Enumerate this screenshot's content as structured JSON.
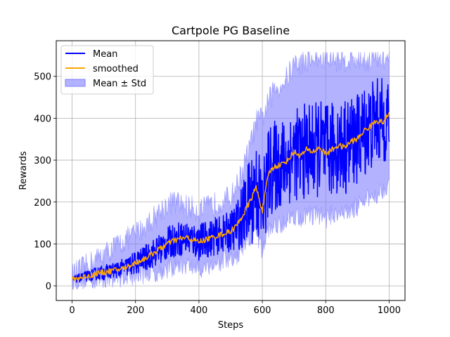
{
  "chart_data": {
    "type": "line",
    "title": "Cartpole PG Baseline",
    "xlabel": "Steps",
    "ylabel": "Rewards",
    "xlim": [
      -50,
      1050
    ],
    "ylim": [
      -35,
      585
    ],
    "xticks": [
      0,
      200,
      400,
      600,
      800,
      1000
    ],
    "yticks": [
      0,
      100,
      200,
      300,
      400,
      500
    ],
    "grid": true,
    "legend_position": "top-left",
    "legend": [
      "Mean",
      "smoothed",
      "Mean ± Std"
    ],
    "colors": {
      "mean": "#0000ff",
      "smoothed": "#ffa500",
      "std_band": "#7f7fff"
    },
    "steps_step": 20,
    "series": [
      {
        "name": "smoothed",
        "x": [
          0,
          20,
          40,
          60,
          80,
          100,
          120,
          140,
          160,
          180,
          200,
          220,
          240,
          260,
          280,
          300,
          320,
          340,
          360,
          380,
          400,
          420,
          440,
          460,
          480,
          500,
          520,
          540,
          560,
          580,
          600,
          620,
          640,
          660,
          680,
          700,
          720,
          740,
          760,
          780,
          800,
          820,
          840,
          860,
          880,
          900,
          920,
          940,
          960,
          980,
          1000
        ],
        "values": [
          15,
          18,
          22,
          25,
          30,
          32,
          35,
          38,
          42,
          48,
          55,
          62,
          70,
          80,
          90,
          100,
          108,
          112,
          115,
          110,
          105,
          110,
          115,
          120,
          125,
          130,
          145,
          170,
          200,
          235,
          180,
          270,
          285,
          290,
          300,
          320,
          310,
          325,
          320,
          330,
          315,
          325,
          335,
          330,
          345,
          350,
          370,
          380,
          395,
          390,
          410
        ]
      },
      {
        "name": "Mean",
        "x": [
          0,
          20,
          40,
          60,
          80,
          100,
          120,
          140,
          160,
          180,
          200,
          220,
          240,
          260,
          280,
          300,
          320,
          340,
          360,
          380,
          400,
          420,
          440,
          460,
          480,
          500,
          520,
          540,
          560,
          580,
          600,
          620,
          640,
          660,
          680,
          700,
          720,
          740,
          760,
          780,
          800,
          820,
          840,
          860,
          880,
          900,
          920,
          940,
          960,
          980,
          1000
        ],
        "values": [
          15,
          18,
          22,
          25,
          30,
          32,
          35,
          38,
          42,
          48,
          55,
          62,
          70,
          80,
          90,
          100,
          108,
          112,
          115,
          110,
          105,
          110,
          115,
          120,
          125,
          130,
          145,
          170,
          200,
          235,
          180,
          270,
          285,
          290,
          300,
          320,
          310,
          325,
          320,
          330,
          315,
          325,
          335,
          330,
          345,
          350,
          370,
          380,
          395,
          390,
          410
        ],
        "spread": [
          6,
          10,
          12,
          14,
          16,
          18,
          18,
          20,
          22,
          25,
          28,
          30,
          32,
          35,
          38,
          40,
          40,
          42,
          40,
          42,
          45,
          45,
          45,
          45,
          45,
          50,
          60,
          80,
          110,
          120,
          120,
          110,
          110,
          110,
          110,
          110,
          115,
          115,
          115,
          115,
          120,
          115,
          115,
          115,
          110,
          110,
          110,
          110,
          105,
          105,
          100
        ]
      },
      {
        "name": "Mean ± Std",
        "x": [
          0,
          20,
          40,
          60,
          80,
          100,
          120,
          140,
          160,
          180,
          200,
          220,
          240,
          260,
          280,
          300,
          320,
          340,
          360,
          380,
          400,
          420,
          440,
          460,
          480,
          500,
          520,
          540,
          560,
          580,
          600,
          620,
          640,
          660,
          680,
          700,
          720,
          740,
          760,
          780,
          800,
          820,
          840,
          860,
          880,
          900,
          920,
          940,
          960,
          980,
          1000
        ],
        "lower": [
          10,
          12,
          14,
          14,
          16,
          18,
          20,
          20,
          22,
          24,
          26,
          28,
          30,
          32,
          36,
          40,
          45,
          50,
          50,
          45,
          40,
          45,
          50,
          55,
          60,
          60,
          65,
          90,
          110,
          130,
          80,
          140,
          140,
          150,
          160,
          170,
          160,
          170,
          170,
          170,
          160,
          170,
          180,
          170,
          180,
          190,
          200,
          210,
          220,
          230,
          250
        ],
        "upper": [
          25,
          35,
          45,
          55,
          65,
          75,
          85,
          95,
          105,
          115,
          125,
          135,
          150,
          165,
          180,
          195,
          200,
          195,
          190,
          185,
          180,
          185,
          190,
          200,
          205,
          210,
          240,
          280,
          330,
          390,
          400,
          440,
          470,
          480,
          500,
          530,
          530,
          540,
          540,
          540,
          540,
          540,
          540,
          540,
          540,
          540,
          540,
          540,
          540,
          540,
          540
        ]
      }
    ]
  }
}
